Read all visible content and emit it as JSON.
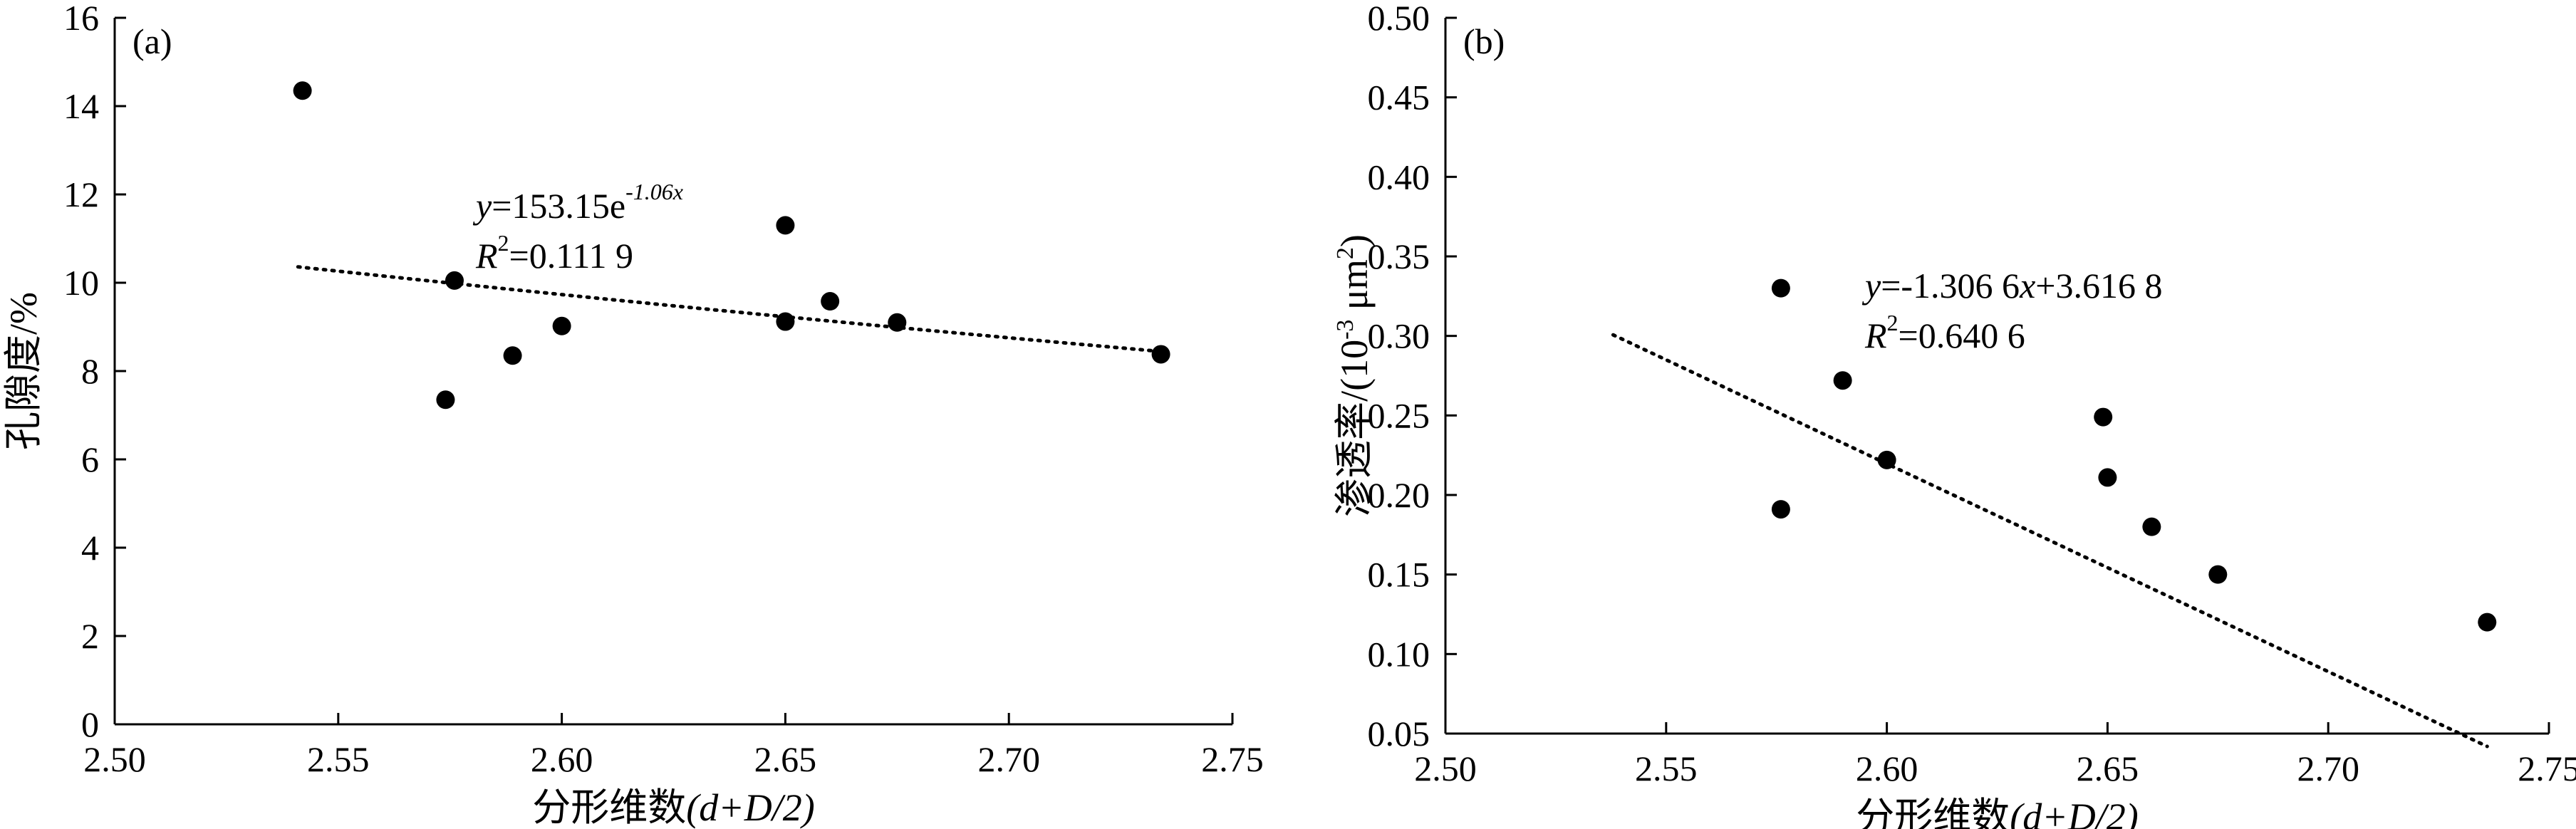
{
  "chart_data": [
    {
      "type": "scatter",
      "panel_label": "(a)",
      "xlabel_main": "分形维数",
      "xlabel_paren": "(d+D/2)",
      "ylabel": "孔隙度/%",
      "xlim": [
        2.5,
        2.75
      ],
      "ylim": [
        0,
        16
      ],
      "x_ticks": [
        "2.50",
        "2.55",
        "2.60",
        "2.65",
        "2.70",
        "2.75"
      ],
      "y_ticks": [
        "0",
        "2",
        "4",
        "6",
        "8",
        "10",
        "12",
        "14",
        "16"
      ],
      "grid": false,
      "series": [
        {
          "points": [
            {
              "x": 2.542,
              "y": 14.35
            },
            {
              "x": 2.574,
              "y": 7.35
            },
            {
              "x": 2.576,
              "y": 10.05
            },
            {
              "x": 2.589,
              "y": 8.35
            },
            {
              "x": 2.6,
              "y": 9.02
            },
            {
              "x": 2.65,
              "y": 11.3
            },
            {
              "x": 2.65,
              "y": 9.12
            },
            {
              "x": 2.66,
              "y": 9.58
            },
            {
              "x": 2.675,
              "y": 9.1
            },
            {
              "x": 2.734,
              "y": 8.38
            }
          ]
        }
      ],
      "trendline": {
        "kind": "exponential",
        "a": 153.15,
        "b": -1.06,
        "x_range": [
          2.541,
          2.734
        ]
      },
      "equation": {
        "y_var": "y",
        "eq_rest": "=153.15e",
        "eq_exp": "-1.06x",
        "r_var": "R",
        "r_sup": "2",
        "r_rest": "=0.111 9"
      }
    },
    {
      "type": "scatter",
      "panel_label": "(b)",
      "xlabel_main": "分形维数",
      "xlabel_paren": "(d+D/2)",
      "ylabel_main": "渗透率/(10",
      "ylabel_sup": "-3",
      "ylabel_unit": " μm",
      "ylabel_unit_sup": "2",
      "ylabel_close": ")",
      "xlim": [
        2.5,
        2.75
      ],
      "ylim": [
        0.05,
        0.5
      ],
      "x_ticks": [
        "2.50",
        "2.55",
        "2.60",
        "2.65",
        "2.70",
        "2.75"
      ],
      "y_ticks": [
        "0.05",
        "0.10",
        "0.15",
        "0.20",
        "0.25",
        "0.30",
        "0.35",
        "0.40",
        "0.45",
        "0.50"
      ],
      "grid": false,
      "series": [
        {
          "points": [
            {
              "x": 2.576,
              "y": 0.33
            },
            {
              "x": 2.576,
              "y": 0.191
            },
            {
              "x": 2.59,
              "y": 0.272
            },
            {
              "x": 2.6,
              "y": 0.222
            },
            {
              "x": 2.649,
              "y": 0.249
            },
            {
              "x": 2.65,
              "y": 0.211
            },
            {
              "x": 2.66,
              "y": 0.18
            },
            {
              "x": 2.675,
              "y": 0.15
            },
            {
              "x": 2.736,
              "y": 0.12
            }
          ]
        }
      ],
      "trendline": {
        "kind": "linear",
        "slope": -1.3066,
        "intercept": 3.6168,
        "x_range": [
          2.538,
          2.736
        ]
      },
      "equation": {
        "y_var": "y",
        "eq_rest": "=-1.306 6",
        "x_var": "x",
        "eq_tail": "+3.616 8",
        "r_var": "R",
        "r_sup": "2",
        "r_rest": "=0.640 6"
      }
    }
  ]
}
